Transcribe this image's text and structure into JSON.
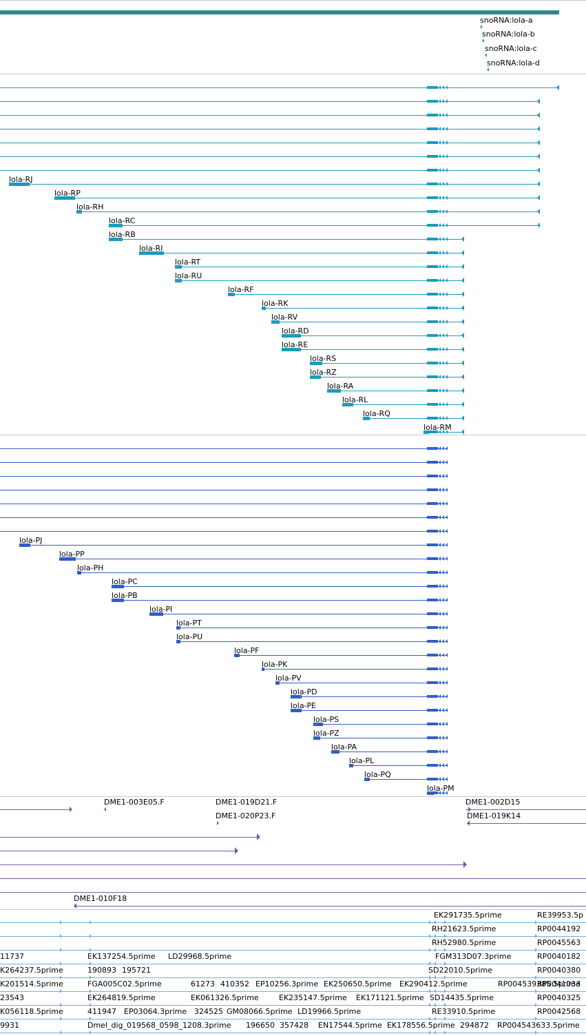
{
  "colors": {
    "gene": "#2f8a8a",
    "rna": "#1b9bbf",
    "protein": "#2f5fc8",
    "clone": "#7b55a8",
    "est": "#6fb0d8",
    "separator": "#c8c8c8"
  },
  "tracks": {
    "gene": {
      "name": "gene-track"
    },
    "snorna": {
      "labels": [
        "snoRNA:lola-a",
        "snoRNA:lola-b",
        "snoRNA:lola-c",
        "snoRNA:lola-d"
      ]
    },
    "transcripts": {
      "labels": [
        "lola-RJ",
        "lola-RP",
        "lola-RH",
        "lola-RC",
        "lola-RB",
        "lola-RI",
        "lola-RT",
        "lola-RU",
        "lola-RF",
        "lola-RK",
        "lola-RV",
        "lola-RD",
        "lola-RE",
        "lola-RS",
        "lola-RZ",
        "lola-RA",
        "lola-RL",
        "lola-RQ",
        "lola-RM"
      ]
    },
    "proteins": {
      "labels": [
        "lola-PJ",
        "lola-PP",
        "lola-PH",
        "lola-PC",
        "lola-PB",
        "lola-PI",
        "lola-PT",
        "lola-PU",
        "lola-PF",
        "lola-PK",
        "lola-PV",
        "lola-PD",
        "lola-PE",
        "lola-PS",
        "lola-PZ",
        "lola-PA",
        "lola-PL",
        "lola-PQ",
        "lola-PM"
      ]
    },
    "clones": {
      "labels": [
        "DME1-003E05.F",
        "DME1-019D21.F",
        "DME1-020P23.F",
        "DME1-002D15",
        "DME1-019K14",
        "DME1-010F18"
      ]
    },
    "ests": {
      "labels": [
        "EK291735.5prime",
        "RE39953.5p",
        "RH21623.5prime",
        "RP0044192",
        "RH52980.5prime",
        "RP0045563",
        "11737",
        "EK137254.5prime",
        "LD29968.5prime",
        "FGM313D07.3prime",
        "RP0040182",
        "K264237.5prime",
        "190893",
        "195721",
        "SD22010.5prime",
        "RP0040380",
        "K201514.5prime",
        "FGA005C02.5prime",
        "61273",
        "410352",
        "EP10256.3prime",
        "EK250650.5prime",
        "EK290412.5prime",
        "RP004539385.5prime",
        "RP0041033",
        "23543",
        "EK264819.5prime",
        "EK061326.5prime",
        "EK235147.5prime",
        "EK171121.5prime",
        "SD14435.5prime",
        "RP0040325",
        "K056118.5prime",
        "411947",
        "EP03064.3prime",
        "324525",
        "GM08066.5prime",
        "LD19966.5prime",
        "RE33910.5prime",
        "RP0042568",
        "9931",
        "Dmel_dig_019568_0598_1208.3prime",
        "196650",
        "357428",
        "EN17544.5prime",
        "EK178556.5prime",
        "294872",
        "RP004543633.5prime"
      ]
    }
  }
}
